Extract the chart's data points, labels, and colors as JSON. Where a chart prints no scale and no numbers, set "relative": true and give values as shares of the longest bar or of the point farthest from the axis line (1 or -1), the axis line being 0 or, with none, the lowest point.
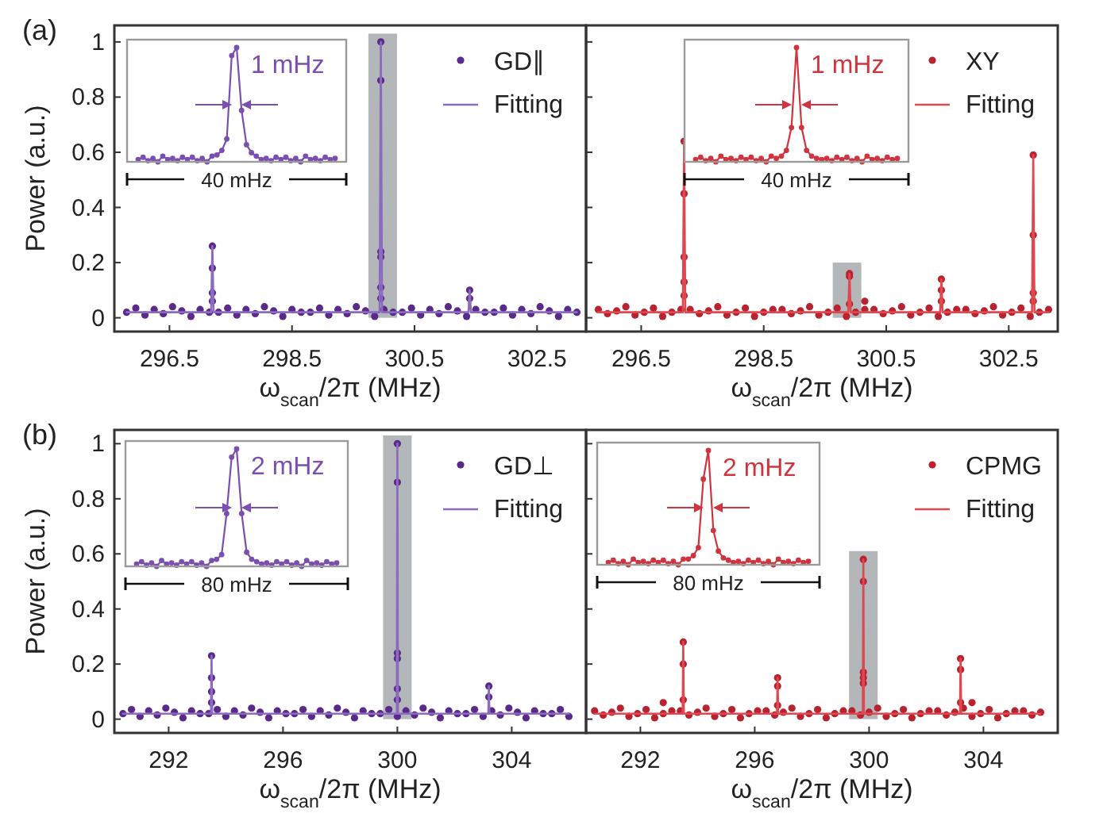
{
  "chart_data": [
    {
      "type": "scatter",
      "annotations": [
        "(a)"
      ],
      "xlabel": "ω$_{scan}$/2π (MHz)",
      "ylabel": "Power (a.u.)",
      "xlim": [
        295.6,
        303.3
      ],
      "xticks": [
        296.5,
        298.5,
        300.5,
        302.5
      ],
      "ylim": [
        -0.05,
        1.06
      ],
      "yticks": [
        0,
        0.2,
        0.4,
        0.6,
        0.8,
        1
      ],
      "legend": "top right",
      "series": [
        {
          "type": "bar",
          "color": "#b4b7ba",
          "x": [
            299.98
          ],
          "values": [
            1.03
          ]
        },
        {
          "name": "GD∥",
          "color": "#5a2a8a",
          "x": [
            295.8,
            295.95,
            296.1,
            296.25,
            296.4,
            296.55,
            296.7,
            296.85,
            297.0,
            297.15,
            297.3,
            297.45,
            297.6,
            297.75,
            297.9,
            298.05,
            298.2,
            298.35,
            298.5,
            298.65,
            298.8,
            298.95,
            299.1,
            299.25,
            299.4,
            299.55,
            299.7,
            299.85,
            300.0,
            300.15,
            300.3,
            300.45,
            300.6,
            300.75,
            300.9,
            301.05,
            301.2,
            301.35,
            301.5,
            301.65,
            301.8,
            301.95,
            302.1,
            302.25,
            302.4,
            302.55,
            302.7,
            302.85,
            303.0,
            303.15,
            297.2,
            297.2,
            297.2,
            297.2,
            299.95,
            299.95,
            299.95,
            299.95,
            299.95,
            299.95,
            301.4,
            301.4
          ],
          "values": [
            0.02,
            0.035,
            0.01,
            0.03,
            0.015,
            0.04,
            0.025,
            0.005,
            0.03,
            0.02,
            0.02,
            0.035,
            0.01,
            0.03,
            0.015,
            0.04,
            0.025,
            0.005,
            0.03,
            0.02,
            0.02,
            0.035,
            0.01,
            0.03,
            0.015,
            0.04,
            0.025,
            0.005,
            0.03,
            0.02,
            0.02,
            0.035,
            0.01,
            0.03,
            0.015,
            0.04,
            0.025,
            0.005,
            0.03,
            0.02,
            0.02,
            0.035,
            0.01,
            0.03,
            0.015,
            0.04,
            0.025,
            0.005,
            0.03,
            0.02,
            0.26,
            0.18,
            0.09,
            0.06,
            1.0,
            0.86,
            0.24,
            0.22,
            0.11,
            0.07,
            0.1,
            0.07
          ]
        },
        {
          "name": "Fitting",
          "type": "line",
          "color": "#8b6bbf",
          "x": [
            295.8,
            297.18,
            297.2,
            297.22,
            299.93,
            299.95,
            299.97,
            301.38,
            301.4,
            301.42,
            303.15
          ],
          "values": [
            0.02,
            0.02,
            0.26,
            0.02,
            0.02,
            1.0,
            0.02,
            0.02,
            0.1,
            0.02,
            0.02
          ]
        }
      ]
    },
    {
      "type": "scatter",
      "xlabel": "ω$_{scan}$/2π (MHz)",
      "xlim": [
        295.6,
        303.3
      ],
      "xticks": [
        296.5,
        298.5,
        300.5,
        302.5
      ],
      "ylim": [
        -0.05,
        1.06
      ],
      "yticks": [
        {
          "value": 0,
          "label": null
        },
        {
          "value": 0.2,
          "label": null
        },
        {
          "value": 0.4,
          "label": null
        },
        {
          "value": 0.6,
          "label": null
        },
        {
          "value": 0.8,
          "label": null
        },
        {
          "value": 1,
          "label": null
        }
      ],
      "tick_labels": "x",
      "legend": "top right",
      "series": [
        {
          "type": "bar",
          "color": "#b4b7ba",
          "x": [
            299.86
          ],
          "values": [
            0.2
          ]
        },
        {
          "name": "XY",
          "color": "#b8232f",
          "x": [
            295.8,
            295.95,
            296.1,
            296.25,
            296.4,
            296.55,
            296.7,
            296.85,
            297.0,
            297.15,
            297.3,
            297.45,
            297.6,
            297.75,
            297.9,
            298.05,
            298.2,
            298.35,
            298.5,
            298.65,
            298.8,
            298.95,
            299.1,
            299.25,
            299.4,
            299.55,
            299.7,
            299.85,
            300.0,
            300.15,
            300.3,
            300.45,
            300.6,
            300.75,
            300.9,
            301.05,
            301.2,
            301.35,
            301.5,
            301.65,
            301.8,
            301.95,
            302.1,
            302.25,
            302.4,
            302.55,
            302.7,
            302.85,
            303.0,
            303.15,
            297.2,
            297.2,
            297.2,
            297.2,
            297.2,
            299.9,
            299.9,
            299.9,
            300.15,
            301.4,
            301.4,
            301.4,
            302.9,
            302.9,
            302.9,
            302.9
          ],
          "values": [
            0.03,
            0.015,
            0.025,
            0.04,
            0.01,
            0.02,
            0.035,
            0.005,
            0.02,
            0.03,
            0.03,
            0.015,
            0.025,
            0.04,
            0.01,
            0.02,
            0.035,
            0.005,
            0.02,
            0.03,
            0.03,
            0.015,
            0.025,
            0.04,
            0.01,
            0.02,
            0.035,
            0.005,
            0.02,
            0.03,
            0.03,
            0.015,
            0.025,
            0.04,
            0.01,
            0.02,
            0.035,
            0.005,
            0.02,
            0.03,
            0.03,
            0.015,
            0.025,
            0.04,
            0.01,
            0.02,
            0.035,
            0.005,
            0.02,
            0.03,
            0.64,
            0.45,
            0.22,
            0.13,
            0.08,
            0.16,
            0.15,
            0.05,
            0.06,
            0.14,
            0.1,
            0.06,
            0.59,
            0.3,
            0.09,
            0.06
          ]
        },
        {
          "name": "Fitting",
          "type": "line",
          "color": "#e0474f",
          "x": [
            295.8,
            297.18,
            297.2,
            297.22,
            299.88,
            299.9,
            299.92,
            301.38,
            301.4,
            301.42,
            302.88,
            302.9,
            302.92,
            303.15
          ],
          "values": [
            0.02,
            0.02,
            0.64,
            0.02,
            0.02,
            0.16,
            0.02,
            0.02,
            0.14,
            0.02,
            0.02,
            0.59,
            0.02,
            0.02
          ]
        }
      ]
    },
    {
      "type": "scatter",
      "annotations": [
        "(b)"
      ],
      "xlabel": "ω$_{scan}$/2π (MHz)",
      "ylabel": "Power (a.u.)",
      "xlim": [
        290.1,
        306.6
      ],
      "xticks": [
        292,
        296,
        300,
        304
      ],
      "ylim": [
        -0.05,
        1.05
      ],
      "yticks": [
        0,
        0.2,
        0.4,
        0.6,
        0.8,
        1
      ],
      "legend": "top right",
      "series": [
        {
          "type": "bar",
          "color": "#b4b7ba",
          "x": [
            300.0
          ],
          "values": [
            1.03
          ]
        },
        {
          "name": "GD⊥",
          "color": "#5a2a8a",
          "x": [
            290.4,
            290.7,
            291.0,
            291.3,
            291.6,
            291.9,
            292.2,
            292.5,
            292.8,
            293.1,
            293.4,
            293.7,
            294.0,
            294.3,
            294.6,
            294.9,
            295.2,
            295.5,
            295.8,
            296.1,
            296.4,
            296.7,
            297.0,
            297.3,
            297.6,
            297.9,
            298.2,
            298.5,
            298.8,
            299.1,
            299.4,
            299.7,
            300.0,
            300.3,
            300.6,
            300.9,
            301.2,
            301.5,
            301.8,
            302.1,
            302.4,
            302.7,
            303.0,
            303.3,
            303.6,
            303.9,
            304.2,
            304.5,
            304.8,
            305.1,
            305.4,
            305.7,
            306.0,
            293.5,
            293.5,
            293.5,
            293.5,
            300.0,
            300.0,
            300.0,
            300.0,
            300.0,
            300.0,
            303.2,
            303.2
          ],
          "values": [
            0.02,
            0.035,
            0.01,
            0.03,
            0.015,
            0.04,
            0.025,
            0.005,
            0.03,
            0.02,
            0.02,
            0.035,
            0.01,
            0.03,
            0.015,
            0.04,
            0.025,
            0.005,
            0.03,
            0.02,
            0.02,
            0.035,
            0.01,
            0.03,
            0.015,
            0.04,
            0.025,
            0.005,
            0.03,
            0.02,
            0.02,
            0.035,
            0.01,
            0.03,
            0.015,
            0.04,
            0.025,
            0.005,
            0.03,
            0.02,
            0.02,
            0.035,
            0.01,
            0.03,
            0.015,
            0.04,
            0.025,
            0.005,
            0.03,
            0.02,
            0.02,
            0.035,
            0.01,
            0.23,
            0.15,
            0.1,
            0.06,
            1.0,
            0.86,
            0.24,
            0.22,
            0.11,
            0.07,
            0.12,
            0.08
          ]
        },
        {
          "name": "Fitting",
          "type": "line",
          "color": "#8b6bbf",
          "x": [
            290.4,
            293.48,
            293.5,
            293.52,
            299.98,
            300.0,
            300.02,
            303.18,
            303.2,
            303.22,
            306.0
          ],
          "values": [
            0.02,
            0.02,
            0.23,
            0.02,
            0.02,
            1.0,
            0.02,
            0.02,
            0.12,
            0.02,
            0.02
          ]
        }
      ]
    },
    {
      "type": "scatter",
      "xlabel": "ω$_{scan}$/2π (MHz)",
      "xlim": [
        290.1,
        306.6
      ],
      "xticks": [
        292,
        296,
        300,
        304
      ],
      "ylim": [
        -0.05,
        1.05
      ],
      "yticks": [
        {
          "value": 0,
          "label": null
        },
        {
          "value": 0.2,
          "label": null
        },
        {
          "value": 0.4,
          "label": null
        },
        {
          "value": 0.6,
          "label": null
        },
        {
          "value": 0.8,
          "label": null
        },
        {
          "value": 1,
          "label": null
        }
      ],
      "tick_labels": "x",
      "legend": "top right",
      "series": [
        {
          "type": "bar",
          "color": "#b4b7ba",
          "x": [
            299.8
          ],
          "values": [
            0.61
          ]
        },
        {
          "name": "CPMG",
          "color": "#b8232f",
          "x": [
            290.4,
            290.7,
            291.0,
            291.3,
            291.6,
            291.9,
            292.2,
            292.5,
            292.8,
            293.1,
            293.4,
            293.7,
            294.0,
            294.3,
            294.6,
            294.9,
            295.2,
            295.5,
            295.8,
            296.1,
            296.4,
            296.7,
            297.0,
            297.3,
            297.6,
            297.9,
            298.2,
            298.5,
            298.8,
            299.1,
            299.4,
            299.7,
            300.0,
            300.3,
            300.6,
            300.9,
            301.2,
            301.5,
            301.8,
            302.1,
            302.4,
            302.7,
            303.0,
            303.3,
            303.6,
            303.9,
            304.2,
            304.5,
            304.8,
            305.1,
            305.4,
            305.7,
            306.0,
            292.8,
            293.5,
            293.5,
            293.5,
            296.8,
            296.8,
            296.8,
            299.8,
            299.8,
            299.8,
            299.8,
            299.8,
            303.2,
            303.2,
            303.2,
            303.6
          ],
          "values": [
            0.03,
            0.015,
            0.025,
            0.04,
            0.01,
            0.02,
            0.035,
            0.005,
            0.02,
            0.03,
            0.03,
            0.015,
            0.025,
            0.04,
            0.01,
            0.02,
            0.035,
            0.005,
            0.02,
            0.03,
            0.03,
            0.015,
            0.025,
            0.04,
            0.01,
            0.02,
            0.035,
            0.005,
            0.02,
            0.03,
            0.03,
            0.015,
            0.025,
            0.04,
            0.01,
            0.02,
            0.035,
            0.005,
            0.02,
            0.03,
            0.03,
            0.015,
            0.025,
            0.04,
            0.01,
            0.02,
            0.035,
            0.005,
            0.02,
            0.03,
            0.03,
            0.015,
            0.025,
            0.06,
            0.28,
            0.2,
            0.07,
            0.15,
            0.12,
            0.05,
            0.58,
            0.5,
            0.17,
            0.15,
            0.13,
            0.22,
            0.18,
            0.06,
            0.06
          ]
        },
        {
          "name": "Fitting",
          "type": "line",
          "color": "#e0474f",
          "x": [
            290.4,
            293.48,
            293.5,
            293.52,
            296.78,
            296.8,
            296.82,
            299.78,
            299.8,
            299.82,
            303.18,
            303.2,
            303.22,
            306.0
          ],
          "values": [
            0.02,
            0.02,
            0.28,
            0.02,
            0.02,
            0.15,
            0.02,
            0.02,
            0.58,
            0.02,
            0.02,
            0.22,
            0.02,
            0.02
          ]
        }
      ]
    },
    {
      "type": "line",
      "marker": "circle",
      "relative": true,
      "annotations": [
        "1 mHz",
        "40 mHz"
      ],
      "categories": [
        null,
        null,
        null,
        null,
        null,
        null,
        null,
        null,
        null,
        null,
        null,
        null,
        null,
        null,
        null,
        null,
        null,
        null,
        null,
        null,
        null,
        null,
        null,
        null,
        null,
        null,
        null,
        null,
        null,
        null,
        null,
        null,
        null,
        null,
        null,
        null,
        null,
        null,
        null,
        null,
        null
      ],
      "series": [
        {
          "color": "#7a4fb0",
          "values": [
            0.02,
            0.04,
            0.01,
            0.03,
            0.0,
            0.05,
            0.02,
            0.03,
            0.01,
            0.04,
            0.02,
            0.04,
            0.01,
            0.03,
            0.0,
            0.05,
            0.06,
            0.1,
            0.2,
            0.93,
            1.0,
            0.45,
            0.15,
            0.08,
            0.05,
            0.02,
            0.03,
            0.01,
            0.04,
            0.02,
            0.04,
            0.01,
            0.03,
            0.0,
            0.05,
            0.02,
            0.03,
            0.01,
            0.04,
            0.02,
            0.03
          ]
        }
      ]
    },
    {
      "type": "line",
      "marker": "circle",
      "relative": true,
      "annotations": [
        "1 mHz",
        "40 mHz"
      ],
      "categories": [
        null,
        null,
        null,
        null,
        null,
        null,
        null,
        null,
        null,
        null,
        null,
        null,
        null,
        null,
        null,
        null,
        null,
        null,
        null,
        null,
        null,
        null,
        null,
        null,
        null,
        null,
        null,
        null,
        null,
        null,
        null,
        null,
        null,
        null,
        null,
        null,
        null,
        null,
        null,
        null,
        null
      ],
      "series": [
        {
          "color": "#d0353f",
          "values": [
            0.02,
            0.04,
            0.01,
            0.03,
            0.0,
            0.05,
            0.02,
            0.03,
            0.01,
            0.04,
            0.02,
            0.04,
            0.01,
            0.03,
            0.0,
            0.05,
            0.03,
            0.05,
            0.1,
            0.3,
            1.0,
            0.3,
            0.1,
            0.05,
            0.03,
            0.02,
            0.03,
            0.01,
            0.04,
            0.02,
            0.04,
            0.01,
            0.03,
            0.0,
            0.05,
            0.02,
            0.03,
            0.01,
            0.04,
            0.02,
            0.03
          ]
        }
      ]
    },
    {
      "type": "line",
      "marker": "circle",
      "relative": true,
      "annotations": [
        "2 mHz",
        "80 mHz"
      ],
      "categories": [
        null,
        null,
        null,
        null,
        null,
        null,
        null,
        null,
        null,
        null,
        null,
        null,
        null,
        null,
        null,
        null,
        null,
        null,
        null,
        null,
        null,
        null,
        null,
        null,
        null,
        null,
        null,
        null,
        null,
        null,
        null,
        null,
        null,
        null,
        null,
        null,
        null,
        null,
        null,
        null,
        null
      ],
      "series": [
        {
          "color": "#7a4fb0",
          "values": [
            0.02,
            0.04,
            0.01,
            0.03,
            0.0,
            0.05,
            0.02,
            0.03,
            0.01,
            0.04,
            0.02,
            0.04,
            0.01,
            0.03,
            0.0,
            0.05,
            0.06,
            0.1,
            0.45,
            0.93,
            1.0,
            0.45,
            0.12,
            0.06,
            0.04,
            0.02,
            0.03,
            0.01,
            0.04,
            0.02,
            0.04,
            0.01,
            0.03,
            0.0,
            0.05,
            0.02,
            0.03,
            0.01,
            0.04,
            0.02,
            0.03
          ]
        }
      ]
    },
    {
      "type": "line",
      "marker": "circle",
      "relative": true,
      "annotations": [
        "2 mHz",
        "80 mHz"
      ],
      "categories": [
        null,
        null,
        null,
        null,
        null,
        null,
        null,
        null,
        null,
        null,
        null,
        null,
        null,
        null,
        null,
        null,
        null,
        null,
        null,
        null,
        null,
        null,
        null,
        null,
        null,
        null,
        null,
        null,
        null,
        null,
        null,
        null,
        null,
        null,
        null,
        null,
        null,
        null,
        null,
        null,
        null
      ],
      "series": [
        {
          "color": "#d0353f",
          "values": [
            0.02,
            0.04,
            0.01,
            0.03,
            0.0,
            0.05,
            0.02,
            0.03,
            0.01,
            0.04,
            0.02,
            0.04,
            0.01,
            0.03,
            0.0,
            0.05,
            0.05,
            0.08,
            0.15,
            0.75,
            1.0,
            0.3,
            0.12,
            0.06,
            0.04,
            0.02,
            0.03,
            0.01,
            0.04,
            0.02,
            0.04,
            0.01,
            0.03,
            0.0,
            0.05,
            0.02,
            0.03,
            0.01,
            0.04,
            0.02,
            0.03
          ]
        }
      ]
    }
  ]
}
